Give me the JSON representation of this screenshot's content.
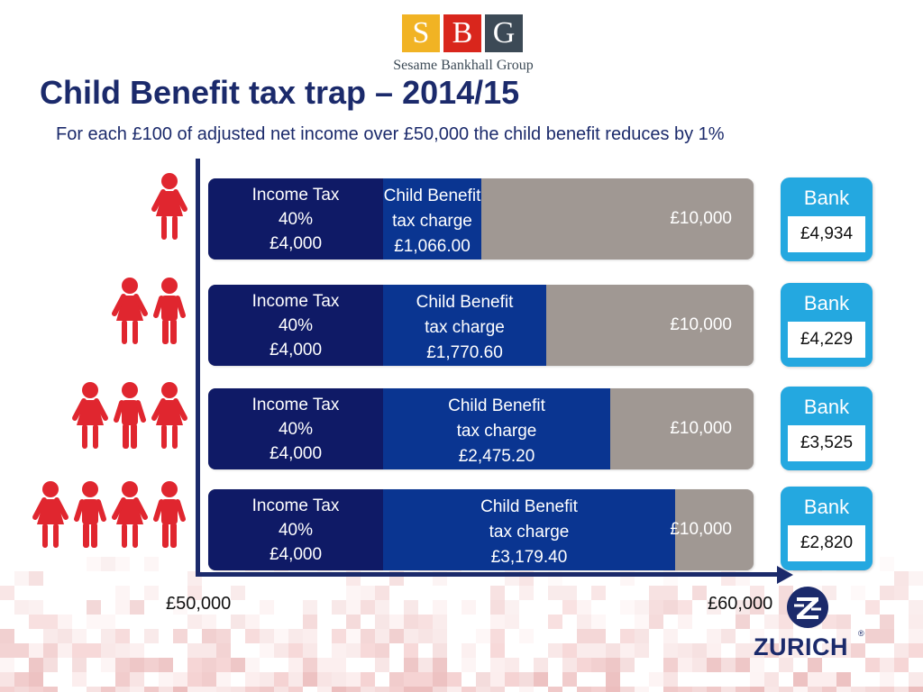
{
  "logo": {
    "letters": [
      "S",
      "B",
      "G"
    ],
    "company": "Sesame Bankhall Group"
  },
  "title": "Child Benefit tax trap – 2014/15",
  "subtitle": "For each £100 of adjusted net income over £50,000 the child benefit reduces by 1%",
  "axis": {
    "start_label": "£50,000",
    "end_label": "£60,000"
  },
  "rows": [
    {
      "children": 1,
      "income_tax": {
        "line1": "Income Tax",
        "line2": "40%",
        "line3": "£4,000"
      },
      "child_benefit": {
        "line1": "Child Benefit",
        "line2": "tax charge",
        "line3": "£1,066.00",
        "share": 0.1066
      },
      "total": "£10,000",
      "bank": {
        "label": "Bank",
        "value": "£4,934"
      }
    },
    {
      "children": 2,
      "income_tax": {
        "line1": "Income Tax",
        "line2": "40%",
        "line3": "£4,000"
      },
      "child_benefit": {
        "line1": "Child Benefit",
        "line2": "tax charge",
        "line3": "£1,770.60",
        "share": 0.17706
      },
      "total": "£10,000",
      "bank": {
        "label": "Bank",
        "value": "£4,229"
      }
    },
    {
      "children": 3,
      "income_tax": {
        "line1": "Income Tax",
        "line2": "40%",
        "line3": "£4,000"
      },
      "child_benefit": {
        "line1": "Child Benefit",
        "line2": "tax charge",
        "line3": "£2,475.20",
        "share": 0.24752
      },
      "total": "£10,000",
      "bank": {
        "label": "Bank",
        "value": "£3,525"
      }
    },
    {
      "children": 4,
      "income_tax": {
        "line1": "Income Tax",
        "line2": "40%",
        "line3": "£4,000"
      },
      "child_benefit": {
        "line1": "Child Benefit",
        "line2": "tax charge",
        "line3": "£3,179.40",
        "share": 0.31794
      },
      "total": "£10,000",
      "bank": {
        "label": "Bank",
        "value": "£2,820"
      }
    }
  ],
  "brand": {
    "name": "ZURICH",
    "reg": "®"
  },
  "colors": {
    "title": "#1b2a6b",
    "income_tax": "#0f1a66",
    "child_benefit": "#0a3591",
    "remainder": "#a09893",
    "bank": "#24a8e0",
    "child_icon": "#e0262f"
  },
  "icons": {
    "child": "child-figure-icon",
    "zurich": "zurich-z-icon"
  }
}
